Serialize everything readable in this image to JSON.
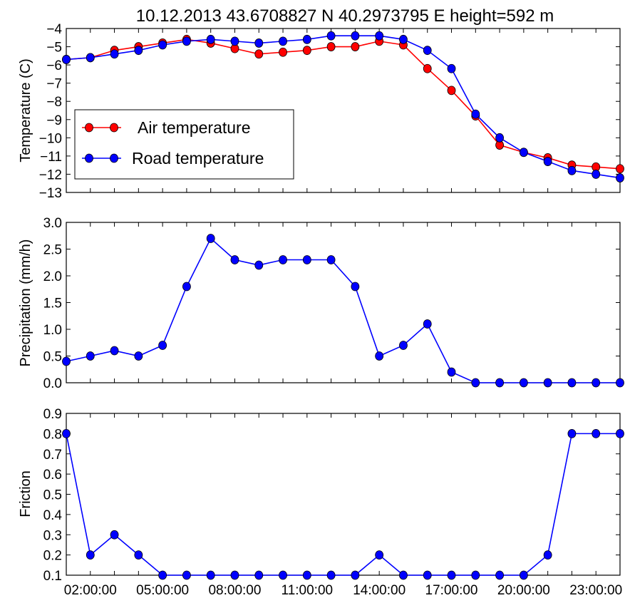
{
  "title": "10.12.2013   43.6708827 N 40.2973795 E height=592 m",
  "x_tick_labels": [
    "02:00:00",
    "05:00:00",
    "08:00:00",
    "11:00:00",
    "14:00:00",
    "17:00:00",
    "20:00:00",
    "23:00:00"
  ],
  "chart_data": [
    {
      "type": "line",
      "ylabel": "Temperature (C)",
      "ylim": [
        -13,
        -4
      ],
      "yticks": [
        -4,
        -5,
        -6,
        -7,
        -8,
        -9,
        -10,
        -11,
        -12,
        -13
      ],
      "x_hours": [
        1,
        2,
        3,
        4,
        5,
        6,
        7,
        8,
        9,
        10,
        11,
        12,
        13,
        14,
        15,
        16,
        17,
        18,
        19,
        20,
        21,
        22,
        23,
        24
      ],
      "legend_position": "center-left",
      "series": [
        {
          "name": "Air temperature",
          "color": "#ff0000",
          "values": [
            -5.7,
            -5.6,
            -5.2,
            -5.0,
            -4.8,
            -4.6,
            -4.8,
            -5.1,
            -5.4,
            -5.3,
            -5.2,
            -5.0,
            -5.0,
            -4.7,
            -4.9,
            -6.2,
            -7.4,
            -8.8,
            -10.4,
            -10.8,
            -11.1,
            -11.5,
            -11.6,
            -11.7
          ]
        },
        {
          "name": "Road temperature",
          "color": "#0000ff",
          "values": [
            -5.7,
            -5.6,
            -5.4,
            -5.2,
            -4.9,
            -4.7,
            -4.6,
            -4.7,
            -4.8,
            -4.7,
            -4.6,
            -4.4,
            -4.4,
            -4.4,
            -4.6,
            -5.2,
            -6.2,
            -8.7,
            -10.0,
            -10.8,
            -11.3,
            -11.8,
            -12.0,
            -12.2
          ]
        }
      ]
    },
    {
      "type": "line",
      "ylabel": "Precipitation (mm/h)",
      "ylim": [
        0.0,
        3.0
      ],
      "yticks": [
        "0.0",
        "0.5",
        "1.0",
        "1.5",
        "2.0",
        "2.5",
        "3.0"
      ],
      "x_hours": [
        1,
        2,
        3,
        4,
        5,
        6,
        7,
        8,
        9,
        10,
        11,
        12,
        13,
        14,
        15,
        16,
        17,
        18,
        19,
        20,
        21,
        22,
        23,
        24
      ],
      "series": [
        {
          "color": "#0000ff",
          "values": [
            0.4,
            0.5,
            0.6,
            0.5,
            0.7,
            1.8,
            2.7,
            2.3,
            2.2,
            2.3,
            2.3,
            2.3,
            1.8,
            0.5,
            0.7,
            1.1,
            0.2,
            0.0,
            0.0,
            0.0,
            0.0,
            0.0,
            0.0,
            0.0
          ]
        }
      ]
    },
    {
      "type": "line",
      "ylabel": "Friction",
      "ylim": [
        0.1,
        0.9
      ],
      "yticks": [
        "0.1",
        "0.2",
        "0.3",
        "0.4",
        "0.5",
        "0.6",
        "0.7",
        "0.8",
        "0.9"
      ],
      "x_hours": [
        1,
        2,
        3,
        4,
        5,
        6,
        7,
        8,
        9,
        10,
        11,
        12,
        13,
        14,
        15,
        16,
        17,
        18,
        19,
        20,
        21,
        22,
        23,
        24
      ],
      "series": [
        {
          "color": "#0000ff",
          "values": [
            0.8,
            0.2,
            0.3,
            0.2,
            0.1,
            0.1,
            0.1,
            0.1,
            0.1,
            0.1,
            0.1,
            0.1,
            0.1,
            0.2,
            0.1,
            0.1,
            0.1,
            0.1,
            0.1,
            0.1,
            0.2,
            0.8,
            0.8,
            0.8
          ]
        }
      ]
    }
  ]
}
